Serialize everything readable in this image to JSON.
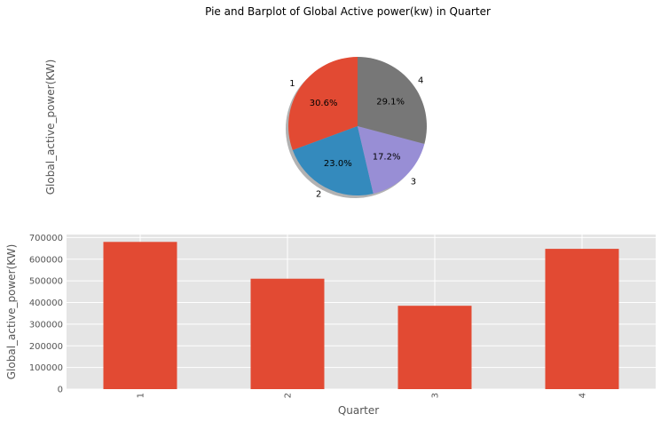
{
  "figure": {
    "title": "Pie and Barplot of Global Active power(kw) in Quarter",
    "colors": {
      "bar": "#E24A33",
      "axes_bg": "#E5E5E5",
      "grid": "#FFFFFF",
      "text": "#555555"
    }
  },
  "chart_data": [
    {
      "type": "pie",
      "ylabel": "Global_active_power(KW)",
      "labels": [
        "1",
        "2",
        "3",
        "4"
      ],
      "percentages": [
        30.6,
        23.0,
        17.2,
        29.1
      ],
      "percent_labels": [
        "30.6%",
        "23.0%",
        "17.2%",
        "29.1%"
      ],
      "colors": [
        "#E24A33",
        "#348ABD",
        "#988ED5",
        "#777777"
      ],
      "start_angle_deg": 90,
      "direction": "counterclockwise",
      "shadow": true
    },
    {
      "type": "bar",
      "categories": [
        "1",
        "2",
        "3",
        "4"
      ],
      "values": [
        680000,
        510000,
        385000,
        648000
      ],
      "xlabel": "Quarter",
      "ylabel": "Global_active_power(KW)",
      "ylim": [
        0,
        714000
      ],
      "yticks": [
        0,
        100000,
        200000,
        300000,
        400000,
        500000,
        600000,
        700000
      ],
      "ytick_labels": [
        "0",
        "100000",
        "200000",
        "300000",
        "400000",
        "500000",
        "600000",
        "700000"
      ],
      "grid": true,
      "color": "#E24A33"
    }
  ]
}
